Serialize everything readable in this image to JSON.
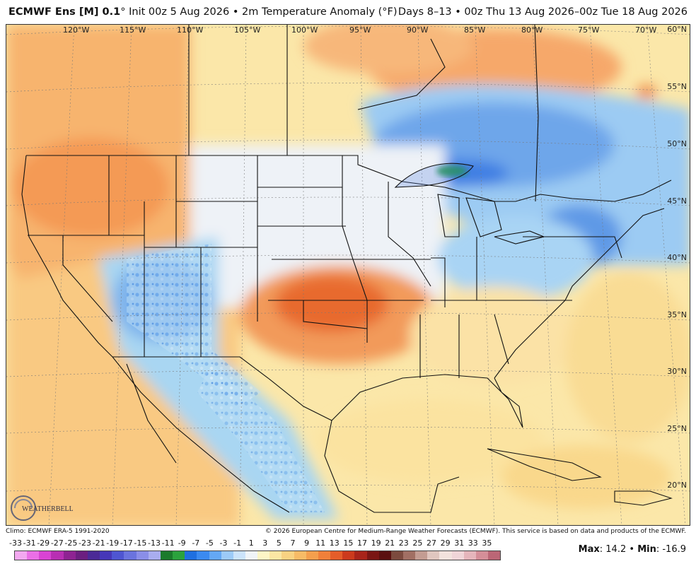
{
  "header": {
    "model": "ECMWF Ens [M] 0.1",
    "degree_mark": "°",
    "init": "Init 00z 5 Aug 2026",
    "bullet": "•",
    "variable": "2m Temperature Anomaly (°F)",
    "range": "Days 8–13 • 00z Thu 13 Aug 2026–00z Tue 18 Aug 2026"
  },
  "map": {
    "longitudes": [
      "120°W",
      "115°W",
      "110°W",
      "105°W",
      "100°W",
      "95°W",
      "90°W",
      "85°W",
      "80°W",
      "75°W",
      "70°W"
    ],
    "latitudes": [
      "60°N",
      "55°N",
      "50°N",
      "45°N",
      "40°N",
      "35°N",
      "30°N",
      "25°N",
      "20°N"
    ],
    "logo_text": "WEATHERBELL",
    "colors": {
      "warm": "#f6a160",
      "hot": "#e86a2e",
      "mild": "#fbe3a0",
      "cool": "#a9d6f2",
      "cold": "#6aa8ea",
      "colder": "#3f7fe3",
      "neutral": "#f1f4f8",
      "ocean": "#fbe7a9"
    }
  },
  "footer": {
    "climo": "Climo: ECMWF ERA-5 1991-2020",
    "copyright": "© 2026 European Centre for Medium-Range Weather Forecasts (ECMWF). This service is based on data and products of the ECMWF."
  },
  "scale": {
    "labels": [
      "-33",
      "-31",
      "-29",
      "-27",
      "-25",
      "-23",
      "-21",
      "-19",
      "-17",
      "-15",
      "-13",
      "-11",
      "-9",
      "-7",
      "-5",
      "-3",
      "-1",
      "1",
      "3",
      "5",
      "7",
      "9",
      "11",
      "13",
      "15",
      "17",
      "19",
      "21",
      "23",
      "25",
      "27",
      "29",
      "31",
      "33",
      "35"
    ],
    "colors": [
      "#f3a8f0",
      "#ea6fe6",
      "#d943d4",
      "#b82fb3",
      "#8e2392",
      "#6b1f80",
      "#4b2a96",
      "#4637b8",
      "#4e55d1",
      "#6a73de",
      "#8a8ee8",
      "#a9adef",
      "#1b7a2c",
      "#2ba23d",
      "#1f6fe0",
      "#3b8af0",
      "#64a8f5",
      "#9ccaf8",
      "#cbe3fb",
      "#f0f4f8",
      "#fdf6c6",
      "#fbe6a3",
      "#f9d282",
      "#f7bb66",
      "#f49f4d",
      "#f0803a",
      "#e55d2a",
      "#cc3a1d",
      "#a8241a",
      "#7a1614",
      "#5a1010",
      "#7c4a3e",
      "#a16f63",
      "#c39c92",
      "#e0c6bf",
      "#f3e2dd",
      "#f0d5d8",
      "#e5b5bb",
      "#d48e98",
      "#bb6676"
    ]
  },
  "stats": {
    "max_label": "Max",
    "max_value": "14.2",
    "bullet": "•",
    "min_label": "Min",
    "min_value": "-16.9"
  }
}
